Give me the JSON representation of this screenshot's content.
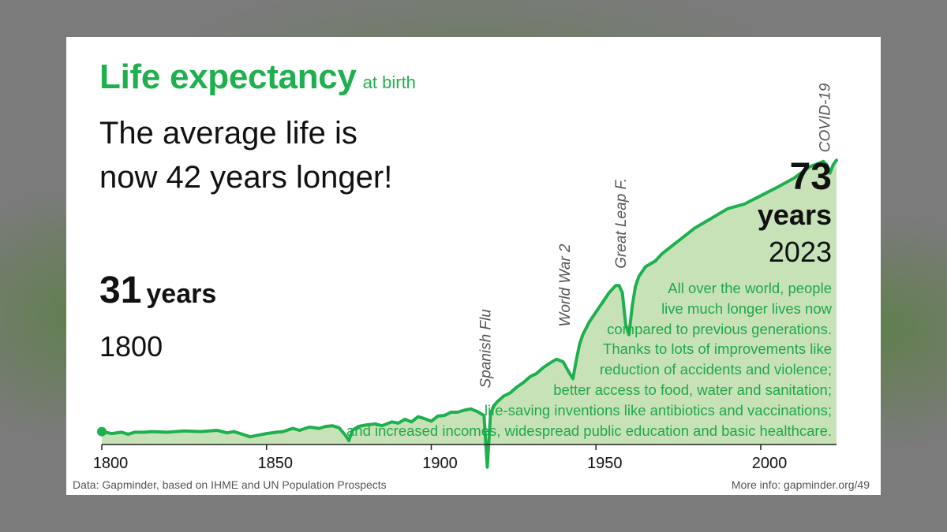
{
  "title": "Life expectancy",
  "subtitle": "at birth",
  "headline": "The average life is now 42 years longer!",
  "start_label": {
    "value": "31",
    "unit": "years",
    "year": "1800"
  },
  "end_label": {
    "value": "73",
    "unit": "years",
    "year": "2023"
  },
  "explanation": [
    "All over the world, people",
    "live much longer lives now",
    "compared to previous generations.",
    "Thanks to lots of improvements like",
    "reduction of accidents and violence;",
    "better access to food, water and sanitation;",
    "life-saving inventions like antibiotics and vaccinations;",
    "and increased incomes, widespread public education and basic healthcare."
  ],
  "source": "Data: Gapminder, based on IHME and UN Population Prospects",
  "more_info": "More info: gapminder.org/49",
  "colors": {
    "line": "#1eb04e",
    "area": "#c8e2b8",
    "title": "#1eb04e",
    "text": "#111111"
  },
  "chart_data": {
    "type": "area",
    "xlim": [
      1800,
      2023
    ],
    "ylim": [
      0,
      80
    ],
    "x_ticks": [
      1800,
      1850,
      1900,
      1950,
      2000
    ],
    "grid": false,
    "x": [
      1800,
      1803,
      1806,
      1808,
      1810,
      1813,
      1815,
      1820,
      1825,
      1830,
      1835,
      1838,
      1840,
      1842,
      1845,
      1848,
      1850,
      1853,
      1855,
      1858,
      1860,
      1863,
      1866,
      1868,
      1870,
      1872,
      1874,
      1875,
      1876,
      1878,
      1880,
      1883,
      1885,
      1888,
      1890,
      1892,
      1894,
      1896,
      1898,
      1900,
      1902,
      1904,
      1906,
      1908,
      1910,
      1912,
      1914,
      1916,
      1917,
      1918,
      1919,
      1920,
      1922,
      1924,
      1926,
      1928,
      1930,
      1932,
      1934,
      1936,
      1938,
      1940,
      1942,
      1943,
      1944,
      1945,
      1946,
      1948,
      1950,
      1952,
      1954,
      1956,
      1957,
      1958,
      1959,
      1960,
      1961,
      1962,
      1963,
      1965,
      1968,
      1970,
      1975,
      1980,
      1985,
      1990,
      1995,
      2000,
      2005,
      2010,
      2015,
      2019,
      2020,
      2021,
      2022,
      2023
    ],
    "y": [
      31,
      30.7,
      30.9,
      30.6,
      30.9,
      30.9,
      31.0,
      30.9,
      31.1,
      31.0,
      31.2,
      30.8,
      31.0,
      30.7,
      30.2,
      30.5,
      30.7,
      30.9,
      31.0,
      31.5,
      31.2,
      31.7,
      31.5,
      31.8,
      31.9,
      31.6,
      30.4,
      29.6,
      31.2,
      31.8,
      32.0,
      32.2,
      31.9,
      32.5,
      32.3,
      32.9,
      32.5,
      33.3,
      33.0,
      32.6,
      33.4,
      33.5,
      34.0,
      34.0,
      34.3,
      34.5,
      34.1,
      33.5,
      25.5,
      33.8,
      35.0,
      35.6,
      36.5,
      37.0,
      37.9,
      38.6,
      39.5,
      40.0,
      40.9,
      41.6,
      42.2,
      41.8,
      40.0,
      39.2,
      42.0,
      44.5,
      46.0,
      48.0,
      49.5,
      51.0,
      52.5,
      53.6,
      53.6,
      52.5,
      47.6,
      46.0,
      50.5,
      53.5,
      55.0,
      56.5,
      57.4,
      58.5,
      60.5,
      62.5,
      64.0,
      65.5,
      66.2,
      67.5,
      68.8,
      70.2,
      72.0,
      72.8,
      72.3,
      71.0,
      72.3,
      73.0
    ],
    "annotations": [
      {
        "label": "Spanish Flu",
        "x": 1918
      },
      {
        "label": "World War 2",
        "x": 1942
      },
      {
        "label": "Great Leap F.",
        "x": 1959
      },
      {
        "label": "COVID-19",
        "x": 2021
      }
    ]
  }
}
